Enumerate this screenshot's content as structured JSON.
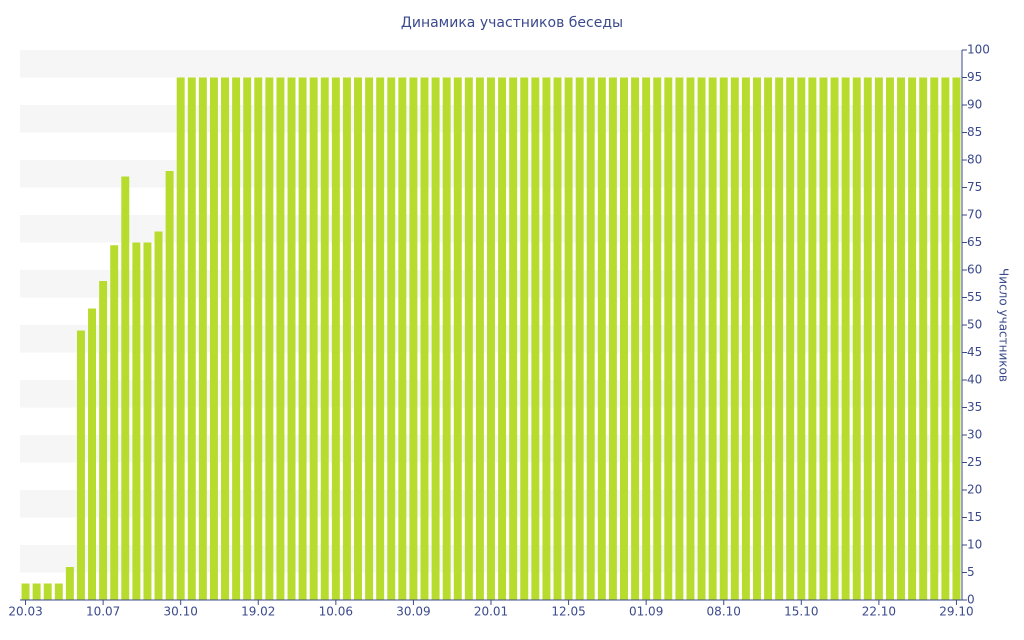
{
  "chart_data": {
    "type": "bar",
    "title": "Динамика участников беседы",
    "y_label": "Число участников",
    "categories": [
      "20.03",
      null,
      null,
      null,
      null,
      null,
      null,
      "10.07",
      null,
      null,
      null,
      null,
      null,
      null,
      "30.10",
      null,
      null,
      null,
      null,
      null,
      null,
      "19.02",
      null,
      null,
      null,
      null,
      null,
      null,
      "10.06",
      null,
      null,
      null,
      null,
      null,
      null,
      "30.09",
      null,
      null,
      null,
      null,
      null,
      null,
      "20.01",
      null,
      null,
      null,
      null,
      null,
      null,
      "12.05",
      null,
      null,
      null,
      null,
      null,
      null,
      "01.09",
      null,
      null,
      null,
      null,
      null,
      null,
      "08.10",
      null,
      null,
      null,
      null,
      null,
      null,
      "15.10",
      null,
      null,
      null,
      null,
      null,
      null,
      "22.10",
      null,
      null,
      null,
      null,
      null,
      null,
      "29.10"
    ],
    "values": [
      3,
      3,
      3,
      3,
      6,
      49,
      53,
      58,
      64.5,
      77,
      65,
      65,
      67,
      78,
      95,
      95,
      95,
      95,
      95,
      95,
      95,
      95,
      95,
      95,
      95,
      95,
      95,
      95,
      95,
      95,
      95,
      95,
      95,
      95,
      95,
      95,
      95,
      95,
      95,
      95,
      95,
      95,
      95,
      95,
      95,
      95,
      95,
      95,
      95,
      95,
      95,
      95,
      95,
      95,
      95,
      95,
      95,
      95,
      95,
      95,
      95,
      95,
      95,
      95,
      95,
      95,
      95,
      95,
      95,
      95,
      95,
      95,
      95,
      95,
      95,
      95,
      95,
      95,
      95,
      95,
      95,
      95,
      95,
      95,
      95
    ],
    "color": "#b8dc2e",
    "ylim": [
      0,
      100
    ],
    "yticks": [
      0,
      5,
      10,
      15,
      20,
      25,
      30,
      35,
      40,
      45,
      50,
      55,
      60,
      65,
      70,
      75,
      80,
      85,
      90,
      95,
      100
    ],
    "grid": true
  }
}
